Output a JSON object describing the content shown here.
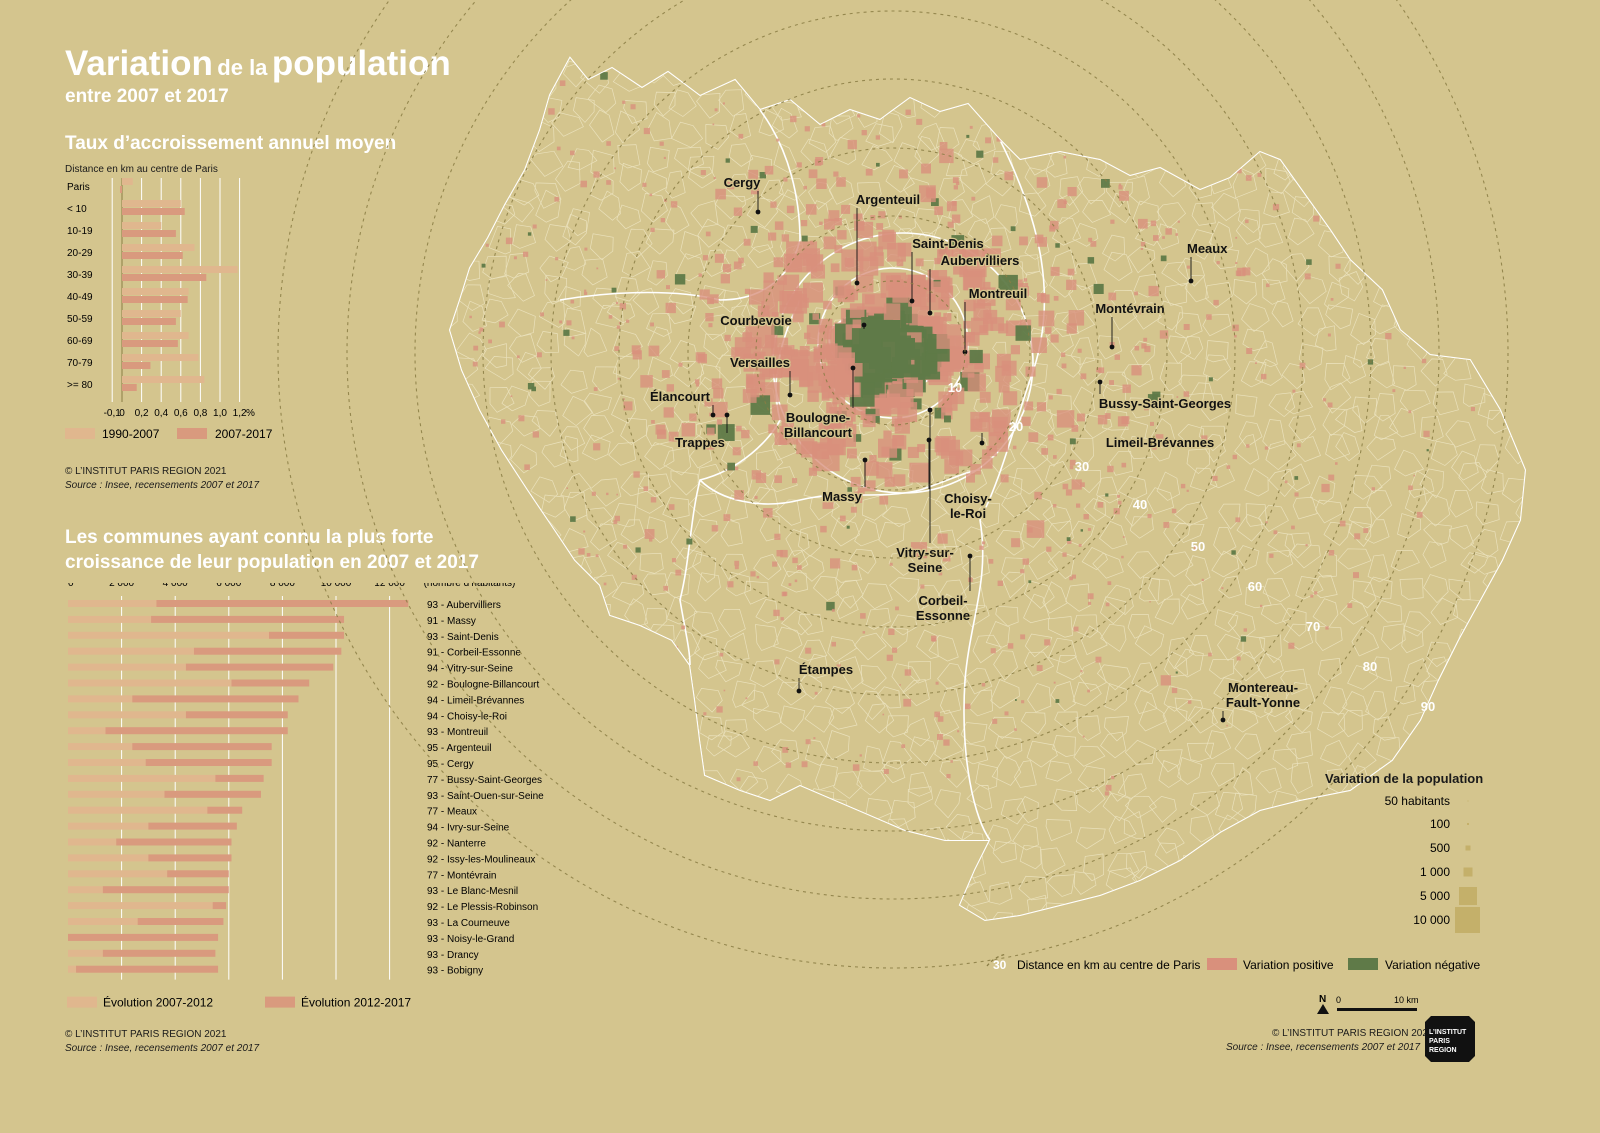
{
  "header": {
    "title_part1": "Variation",
    "title_part2": "de la",
    "title_part3": "population",
    "subtitle": "entre 2007 et 2017"
  },
  "chart_data": [
    {
      "type": "bar",
      "orientation": "horizontal",
      "title": "Taux  d’accroissement annuel moyen",
      "axis_note": "Distance en km au centre de Paris",
      "categories": [
        "Paris",
        "< 10",
        "10-19",
        "20-29",
        "30-39",
        "40-49",
        "50-59",
        "60-69",
        "70-79",
        ">= 80"
      ],
      "series": [
        {
          "name": "1990-2007",
          "color": "#e0b78e",
          "values": [
            0.11,
            0.6,
            0.4,
            0.74,
            1.18,
            0.68,
            0.6,
            0.68,
            0.78,
            0.84
          ]
        },
        {
          "name": "2007-2017",
          "color": "#d99a7e",
          "values": [
            -0.02,
            0.64,
            0.55,
            0.62,
            0.86,
            0.67,
            0.55,
            0.57,
            0.29,
            0.15
          ]
        }
      ],
      "xlim": [
        -0.1,
        1.3
      ],
      "x_ticks": [
        "-0,1",
        "0",
        "0,2",
        "0,4",
        "0,6",
        "0,8",
        "1,0",
        "1,2"
      ],
      "x_unit": "%",
      "grid": true,
      "legend_position": "bottom",
      "credit": "© L’INSTITUT PARIS REGION 2021",
      "source": "Source : Insee, recensements 2007 et 2017"
    },
    {
      "type": "bar",
      "orientation": "horizontal",
      "stacked": true,
      "title_line1": "Les communes ayant connu la plus forte",
      "title_line2": "croissance de leur population en 2007 et 2017",
      "x_ticks": [
        "0",
        "2 000",
        "4 000",
        "6 000",
        "8 000",
        "10 000",
        "12 000"
      ],
      "x_unit": "(nombre d’habitants)",
      "xlim": [
        0,
        12600
      ],
      "categories": [
        "93 - Aubervilliers",
        "91 - Massy",
        "93 - Saint-Denis",
        "91 - Corbeil-Essonne",
        "94 - Vitry-sur-Seine",
        "92 - Boulogne-Billancourt",
        "94 - Limeil-Brévannes",
        "94 - Choisy-le-Roi",
        "93 - Montreuil",
        "95 - Argenteuil",
        "95 - Cergy",
        "77 - Bussy-Saint-Georges",
        "93 - Saint-Ouen-sur-Seine",
        "77 - Meaux",
        "94 - Ivry-sur-Seine",
        "92 - Nanterre",
        "92 - Issy-les-Moulineaux",
        "77 - Montévrain",
        "93 - Le Blanc-Mesnil",
        "92 - Le Plessis-Robinson",
        "93 - La Courneuve",
        "93 - Noisy-le-Grand",
        "93 - Drancy",
        "93 - Bobigny"
      ],
      "series": [
        {
          "name": "Évolution 2007-2012",
          "color": "#e0b78e",
          "values": [
            3300,
            3100,
            7500,
            4700,
            4400,
            6100,
            2400,
            4400,
            1400,
            2400,
            2900,
            5500,
            3600,
            5200,
            3000,
            1800,
            3000,
            3700,
            1300,
            5400,
            2600,
            0,
            1300,
            300
          ]
        },
        {
          "name": "Évolution 2012-2017",
          "color": "#d99a7e",
          "values": [
            9400,
            7200,
            2800,
            5500,
            5500,
            2900,
            6200,
            3800,
            6800,
            5200,
            4700,
            1800,
            3600,
            1300,
            3300,
            4300,
            3100,
            2300,
            4700,
            500,
            3200,
            5600,
            4200,
            5300
          ]
        }
      ],
      "legend_position": "bottom",
      "credit": "© L’INSTITUT PARIS REGION 2021",
      "source": "Source : Insee, recensements 2007 et 2017"
    }
  ],
  "map": {
    "city_labels": [
      "Cergy",
      "Argenteuil",
      "Saint-Denis",
      "Aubervilliers",
      "Montreuil",
      "Meaux",
      "Montévrain",
      "Courbevoie",
      "Versailles",
      "Élancourt",
      "Trappes",
      "Boulogne-\nBillancourt",
      "Bussy-Saint-Georges",
      "Limeil-Brévannes",
      "Massy",
      "Choisy-\nle-Roi",
      "Vitry-sur-\nSeine",
      "Corbeil-\nEssonne",
      "Étampes",
      "Montereau-\nFault-Yonne"
    ],
    "ring_labels": [
      "10",
      "20",
      "30",
      "40",
      "50",
      "60",
      "70",
      "80",
      "90"
    ],
    "legend": {
      "title": "Variation de la population",
      "sizes": [
        "50 habitants",
        "100",
        "500",
        "1 000",
        "5 000",
        "10 000"
      ],
      "ring_sample": "30",
      "ring_text": "Distance en km au centre de Paris",
      "positive": "Variation positive",
      "negative": "Variation négative",
      "positive_color": "#d9907c",
      "negative_color": "#5f7a48"
    },
    "north": "N",
    "scale_zero": "0",
    "scale_end": "10 km",
    "credit": "© L’INSTITUT PARIS REGION 2021",
    "source": "Source : Insee, recensements 2007 et 2017",
    "logo_text": "L’INSTITUT PARIS REGION"
  }
}
